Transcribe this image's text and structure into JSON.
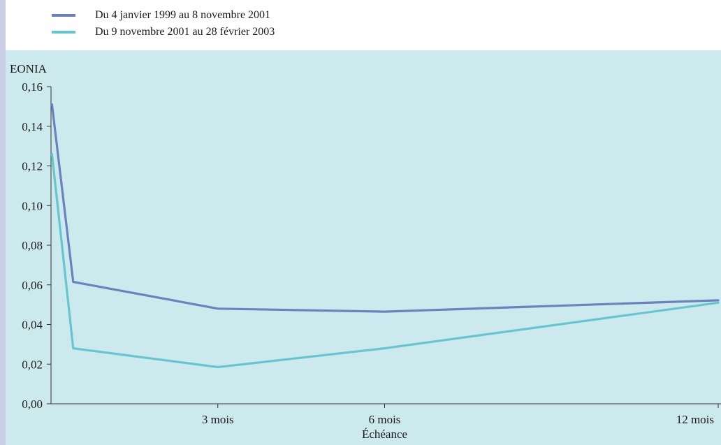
{
  "chart_data": {
    "type": "line",
    "ylabel": "EONIA",
    "xlabel": "Échéance",
    "ylim": [
      0,
      0.16
    ],
    "yticks": [
      {
        "value": 0.0,
        "label": "0,00"
      },
      {
        "value": 0.02,
        "label": "0,02"
      },
      {
        "value": 0.04,
        "label": "0,04"
      },
      {
        "value": 0.06,
        "label": "0,06"
      },
      {
        "value": 0.08,
        "label": "0,08"
      },
      {
        "value": 0.1,
        "label": "0,10"
      },
      {
        "value": 0.12,
        "label": "0,12"
      },
      {
        "value": 0.14,
        "label": "0,14"
      },
      {
        "value": 0.16,
        "label": "0,16"
      }
    ],
    "x": [
      0.017,
      1,
      2,
      3,
      6,
      9,
      12
    ],
    "xlim": [
      0,
      12
    ],
    "xticks": [
      {
        "value": 3,
        "label": "3 mois"
      },
      {
        "value": 6,
        "label": "6 mois"
      },
      {
        "value": 12,
        "label": "12 mois"
      }
    ],
    "grid": false,
    "legend_position": "top-left",
    "series": [
      {
        "name": "Du 4 janvier 1999 au 8 novembre 2001",
        "color": "#6b82bf",
        "points": [
          [
            0.017,
            0.151
          ],
          [
            0.4,
            0.0615
          ],
          [
            3.0,
            0.048
          ],
          [
            6.0,
            0.0465
          ],
          [
            12.0,
            0.0522
          ]
        ]
      },
      {
        "name": "Du 9 novembre 2001 au 28 février 2003",
        "color": "#66c6cf",
        "points": [
          [
            0.017,
            0.126
          ],
          [
            0.4,
            0.028
          ],
          [
            3.0,
            0.0185
          ],
          [
            6.0,
            0.028
          ],
          [
            12.0,
            0.051
          ]
        ]
      }
    ]
  }
}
